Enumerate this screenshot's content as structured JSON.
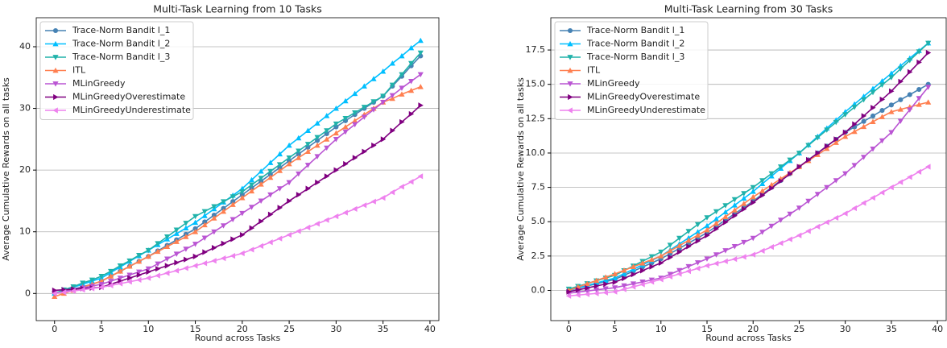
{
  "chart_data": [
    {
      "type": "line",
      "title": "Multi-Task Learning from 10 Tasks",
      "xlabel": "Round across Tasks",
      "ylabel": "Average Cumulative Rewards on all tasks",
      "x": [
        0,
        1,
        2,
        3,
        4,
        5,
        6,
        7,
        8,
        9,
        10,
        11,
        12,
        13,
        14,
        15,
        16,
        17,
        18,
        19,
        20,
        21,
        22,
        23,
        24,
        25,
        26,
        27,
        28,
        29,
        30,
        31,
        32,
        33,
        34,
        35,
        36,
        37,
        38,
        39
      ],
      "xlim": [
        -1.95,
        40.95
      ],
      "ylim": [
        -4.4,
        44.7
      ],
      "xticks": [
        0,
        5,
        10,
        15,
        20,
        25,
        30,
        35,
        40
      ],
      "yticks": [
        0,
        10,
        20,
        30,
        40
      ],
      "grid": "y",
      "legend": "upper left",
      "series": [
        {
          "name": "Trace-Norm Bandit l_1",
          "color": "#4682b4",
          "marker": "o",
          "values": [
            0,
            0.3,
            0.7,
            1.1,
            1.5,
            2,
            2.8,
            3.6,
            4.4,
            5.2,
            6,
            6.9,
            7.8,
            8.7,
            9.6,
            10.5,
            11.6,
            12.7,
            13.8,
            14.9,
            16,
            17.1,
            18.2,
            19.3,
            20.4,
            21.5,
            22.6,
            23.7,
            24.8,
            25.9,
            27,
            28,
            29,
            30,
            31,
            32,
            33.6,
            35.2,
            36.9,
            38.5
          ]
        },
        {
          "name": "Trace-Norm Bandit l_2",
          "color": "#00bfff",
          "marker": "^",
          "values": [
            0,
            0.5,
            1,
            1.5,
            2,
            2.5,
            3.4,
            4.3,
            5.2,
            6.1,
            7,
            7.9,
            8.8,
            9.7,
            10.6,
            11.5,
            12.6,
            13.7,
            14.8,
            15.9,
            17,
            18.4,
            19.8,
            21.2,
            22.6,
            24,
            25.2,
            26.4,
            27.6,
            28.8,
            30,
            31.2,
            32.4,
            33.6,
            34.8,
            36,
            37.3,
            38.5,
            39.8,
            41
          ]
        },
        {
          "name": "Trace-Norm Bandit l_3",
          "color": "#20b2aa",
          "marker": "v",
          "values": [
            0,
            0.6,
            1.1,
            1.7,
            2.2,
            2.8,
            3.6,
            4.5,
            5.3,
            6.2,
            7,
            8.1,
            9.2,
            10.3,
            11.4,
            12.5,
            13.3,
            14.1,
            14.9,
            15.7,
            16.5,
            17.6,
            18.7,
            19.8,
            20.9,
            22,
            23.1,
            24.2,
            25.3,
            26.4,
            27.5,
            28.4,
            29.3,
            30.2,
            31.1,
            32,
            33.8,
            35.5,
            37.3,
            39
          ]
        },
        {
          "name": "ITL",
          "color": "#ff7f50",
          "marker": "^",
          "values": [
            -0.5,
            0,
            0.5,
            1,
            1.5,
            2,
            2.8,
            3.6,
            4.4,
            5.2,
            6,
            6.8,
            7.6,
            8.4,
            9.2,
            10,
            11.1,
            12.2,
            13.3,
            14.4,
            15.5,
            16.6,
            17.7,
            18.8,
            19.9,
            21,
            22,
            23,
            24,
            25,
            26,
            27,
            28,
            29,
            30,
            31,
            31.6,
            32.3,
            32.9,
            33.5
          ]
        },
        {
          "name": "MLinGreedy",
          "color": "#ba55d3",
          "marker": "v",
          "values": [
            0,
            0.3,
            0.6,
            0.9,
            1.2,
            1.5,
            2,
            2.5,
            3,
            3.5,
            4,
            4.8,
            5.6,
            6.4,
            7.2,
            8,
            9,
            10,
            11,
            12,
            13,
            14,
            15,
            16,
            17,
            18,
            19.4,
            20.8,
            22.2,
            23.6,
            25,
            26.2,
            27.4,
            28.6,
            29.8,
            31,
            32.1,
            33.3,
            34.4,
            35.5
          ]
        },
        {
          "name": "MLinGreedyOverestimate",
          "color": "#800080",
          "marker": ">",
          "values": [
            0.5,
            0.6,
            0.7,
            0.8,
            0.9,
            1,
            1.5,
            2,
            2.5,
            3,
            3.5,
            4,
            4.5,
            5,
            5.5,
            6,
            6.7,
            7.4,
            8.1,
            8.8,
            9.5,
            10.6,
            11.7,
            12.8,
            13.9,
            15,
            16,
            17,
            18,
            19,
            20,
            21,
            22,
            23,
            24,
            25,
            26.4,
            27.8,
            29.1,
            30.5
          ]
        },
        {
          "name": "MLinGreedyUnderestimate",
          "color": "#ee82ee",
          "marker": "<",
          "values": [
            0,
            0.2,
            0.4,
            0.6,
            0.8,
            1,
            1.3,
            1.6,
            1.9,
            2.2,
            2.5,
            2.9,
            3.3,
            3.7,
            4.1,
            4.5,
            4.9,
            5.3,
            5.7,
            6.1,
            6.5,
            7.1,
            7.7,
            8.3,
            8.9,
            9.5,
            10.1,
            10.7,
            11.3,
            11.9,
            12.5,
            13.1,
            13.7,
            14.3,
            14.9,
            15.5,
            16.4,
            17.3,
            18.1,
            19
          ]
        }
      ]
    },
    {
      "type": "line",
      "title": "Multi-Task Learning from 30 Tasks",
      "xlabel": "Round across Tasks",
      "ylabel": "Average Cumulative Rewards on all tasks",
      "x": [
        0,
        1,
        2,
        3,
        4,
        5,
        6,
        7,
        8,
        9,
        10,
        11,
        12,
        13,
        14,
        15,
        16,
        17,
        18,
        19,
        20,
        21,
        22,
        23,
        24,
        25,
        26,
        27,
        28,
        29,
        30,
        31,
        32,
        33,
        34,
        35,
        36,
        37,
        38,
        39
      ],
      "xlim": [
        -1.95,
        40.95
      ],
      "ylim": [
        -2.2,
        19.85
      ],
      "xticks": [
        0,
        5,
        10,
        15,
        20,
        25,
        30,
        35,
        40
      ],
      "yticks": [
        {
          "value": 0,
          "label": "0.0"
        },
        2.5,
        {
          "value": 5,
          "label": "5.0"
        },
        7.5,
        {
          "value": 10,
          "label": "10.0"
        },
        12.5,
        {
          "value": 15,
          "label": "15.0"
        },
        17.5
      ],
      "grid": "y",
      "legend": "upper left",
      "series": [
        {
          "name": "Trace-Norm Bandit l_1",
          "color": "#4682b4",
          "marker": "o",
          "values": [
            0,
            0.16,
            0.32,
            0.48,
            0.64,
            0.8,
            1.1,
            1.4,
            1.7,
            2,
            2.3,
            2.68,
            3.06,
            3.44,
            3.82,
            4.2,
            4.66,
            5.12,
            5.58,
            6.04,
            6.5,
            7,
            7.5,
            8,
            8.5,
            9,
            9.5,
            10,
            10.5,
            11,
            11.5,
            11.9,
            12.3,
            12.7,
            13.1,
            13.5,
            13.88,
            14.25,
            14.63,
            15
          ]
        },
        {
          "name": "Trace-Norm Bandit l_2",
          "color": "#00bfff",
          "marker": "^",
          "values": [
            0,
            0.18,
            0.36,
            0.54,
            0.72,
            0.9,
            1.22,
            1.54,
            1.86,
            2.18,
            2.5,
            2.94,
            3.38,
            3.82,
            4.26,
            4.7,
            5.2,
            5.7,
            6.2,
            6.7,
            7.2,
            7.76,
            8.32,
            8.88,
            9.44,
            10,
            10.6,
            11.2,
            11.8,
            12.4,
            13,
            13.56,
            14.12,
            14.68,
            15.24,
            15.8,
            16.35,
            16.9,
            17.45,
            18
          ]
        },
        {
          "name": "Trace-Norm Bandit l_3",
          "color": "#20b2aa",
          "marker": "v",
          "values": [
            0.1,
            0.3,
            0.5,
            0.7,
            0.9,
            1.1,
            1.44,
            1.78,
            2.12,
            2.46,
            2.8,
            3.3,
            3.8,
            4.3,
            4.8,
            5.3,
            5.74,
            6.18,
            6.62,
            7.06,
            7.5,
            8,
            8.5,
            9,
            9.5,
            10,
            10.56,
            11.12,
            11.68,
            12.24,
            12.8,
            13.34,
            13.88,
            14.42,
            14.96,
            15.5,
            16.13,
            16.75,
            17.38,
            18
          ]
        },
        {
          "name": "ITL",
          "color": "#ff7f50",
          "marker": "^",
          "values": [
            0,
            0.24,
            0.48,
            0.72,
            0.96,
            1.2,
            1.46,
            1.72,
            1.98,
            2.24,
            2.5,
            2.88,
            3.26,
            3.64,
            4.02,
            4.4,
            4.88,
            5.36,
            5.84,
            6.32,
            6.8,
            7.24,
            7.68,
            8.12,
            8.56,
            9,
            9.44,
            9.88,
            10.32,
            10.76,
            11.2,
            11.56,
            11.92,
            12.28,
            12.64,
            13,
            13.18,
            13.35,
            13.53,
            13.7
          ]
        },
        {
          "name": "MLinGreedy",
          "color": "#ba55d3",
          "marker": "v",
          "values": [
            -0.2,
            -0.12,
            -0.04,
            0.04,
            0.12,
            0.2,
            0.34,
            0.48,
            0.62,
            0.76,
            0.9,
            1.18,
            1.46,
            1.74,
            2.02,
            2.3,
            2.6,
            2.9,
            3.2,
            3.5,
            3.8,
            4.24,
            4.68,
            5.12,
            5.56,
            6,
            6.5,
            7,
            7.5,
            8,
            8.5,
            9.1,
            9.7,
            10.3,
            10.9,
            11.5,
            12.33,
            13.15,
            13.98,
            14.8
          ]
        },
        {
          "name": "MLinGreedyOverestimate",
          "color": "#800080",
          "marker": ">",
          "values": [
            -0.1,
            0.04,
            0.18,
            0.32,
            0.46,
            0.6,
            0.88,
            1.16,
            1.44,
            1.72,
            2,
            2.4,
            2.8,
            3.2,
            3.6,
            4,
            4.48,
            4.96,
            5.44,
            5.92,
            6.4,
            6.92,
            7.44,
            7.96,
            8.48,
            9,
            9.5,
            10,
            10.5,
            11,
            11.5,
            12.1,
            12.7,
            13.3,
            13.9,
            14.5,
            15.2,
            15.9,
            16.6,
            17.3
          ]
        },
        {
          "name": "MLinGreedyUnderestimate",
          "color": "#ee82ee",
          "marker": "<",
          "values": [
            -0.4,
            -0.34,
            -0.28,
            -0.22,
            -0.16,
            -0.1,
            0.08,
            0.26,
            0.44,
            0.62,
            0.8,
            1,
            1.2,
            1.4,
            1.6,
            1.8,
            1.96,
            2.12,
            2.28,
            2.44,
            2.6,
            2.88,
            3.16,
            3.44,
            3.72,
            4,
            4.32,
            4.64,
            4.96,
            5.28,
            5.6,
            5.98,
            6.36,
            6.74,
            7.12,
            7.5,
            7.88,
            8.25,
            8.63,
            9
          ]
        }
      ]
    }
  ]
}
